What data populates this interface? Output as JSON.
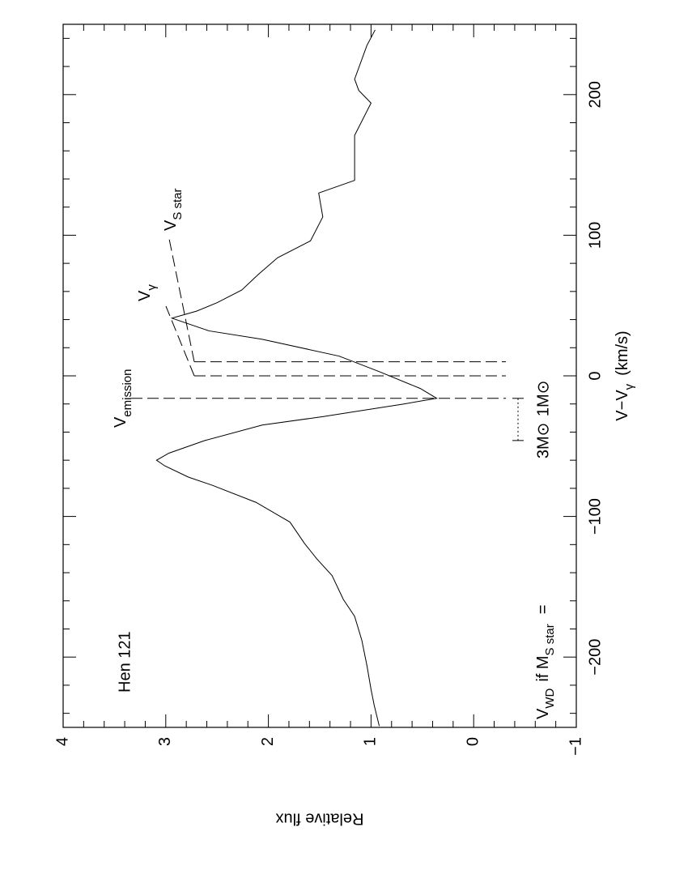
{
  "chart_data": {
    "type": "line",
    "title": "Hen 121",
    "x_label": [
      "V−V",
      "γ",
      "(km/s)"
    ],
    "y_label": "Relative flux",
    "xlim": [
      -250,
      250
    ],
    "ylim": [
      -1,
      4
    ],
    "xticks": [
      {
        "value": -200,
        "label": "−200"
      },
      {
        "value": -100,
        "label": "−100"
      },
      0,
      100,
      200
    ],
    "yticks": [
      {
        "value": -1,
        "label": "−1"
      },
      0,
      1,
      2,
      3,
      4
    ],
    "xticks_minor": [
      -240,
      -220,
      -180,
      -160,
      -140,
      -120,
      -80,
      -60,
      -40,
      -20,
      20,
      40,
      60,
      80,
      120,
      140,
      160,
      180,
      220,
      240
    ],
    "yticks_minor": [
      -0.8,
      -0.6,
      -0.4,
      -0.2,
      0.2,
      0.4,
      0.6,
      0.8,
      1.2,
      1.4,
      1.6,
      1.8,
      2.2,
      2.4,
      2.6,
      2.8,
      3.2,
      3.4,
      3.6,
      3.8
    ],
    "series": [
      {
        "color": "#000000",
        "x": [
          -249,
          -234,
          -223,
          -206,
          -188,
          -171,
          -159,
          -142,
          -130,
          -119,
          -104,
          -90,
          -78,
          -72,
          -64,
          -60,
          -55,
          -46,
          -35,
          -29,
          -20,
          -16,
          -9,
          3,
          14,
          26,
          32,
          41,
          46,
          52,
          61,
          72,
          84,
          96,
          113,
          130,
          139,
          153,
          171,
          194,
          203,
          211,
          235,
          246
        ],
        "values": [
          0.92,
          0.97,
          1.0,
          1.04,
          1.09,
          1.16,
          1.27,
          1.38,
          1.53,
          1.65,
          1.79,
          2.12,
          2.54,
          2.78,
          3.01,
          3.09,
          2.97,
          2.62,
          2.06,
          1.47,
          0.68,
          0.36,
          0.52,
          0.92,
          1.31,
          2.06,
          2.58,
          2.94,
          2.7,
          2.5,
          2.26,
          2.1,
          1.91,
          1.59,
          1.47,
          1.51,
          1.16,
          1.16,
          1.16,
          1.0,
          1.12,
          1.16,
          1.04,
          0.96
        ]
      }
    ],
    "markers": [
      {
        "label": [
          "V",
          "emission"
        ],
        "x": -16
      },
      {
        "label": [
          "V",
          "γ"
        ],
        "x": 0
      },
      {
        "label": [
          "V",
          "S star"
        ],
        "x": 10
      }
    ],
    "wd_label": [
      "V",
      "WD",
      "if  M",
      "S star",
      "="
    ],
    "wd_range": [
      {
        "label": "3M⊙",
        "x": -46
      },
      {
        "label": "1M⊙",
        "x": -16
      }
    ]
  }
}
